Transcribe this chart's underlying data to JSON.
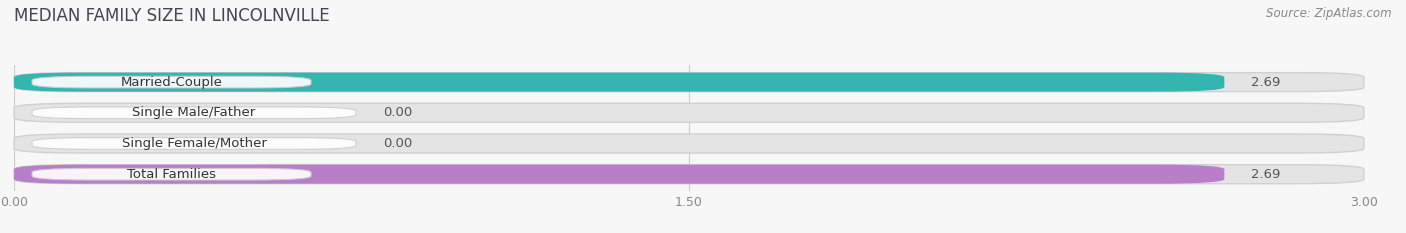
{
  "title": "MEDIAN FAMILY SIZE IN LINCOLNVILLE",
  "source": "Source: ZipAtlas.com",
  "categories": [
    "Married-Couple",
    "Single Male/Father",
    "Single Female/Mother",
    "Total Families"
  ],
  "values": [
    2.69,
    0.0,
    0.0,
    2.69
  ],
  "bar_colors": [
    "#35b5b0",
    "#a0b4e8",
    "#f4a0b5",
    "#b87ec8"
  ],
  "bar_track_color": "#e4e4e4",
  "bar_height": 0.62,
  "xlim": [
    0,
    3.0
  ],
  "xticks": [
    0.0,
    1.5,
    3.0
  ],
  "xtick_labels": [
    "0.00",
    "1.50",
    "3.00"
  ],
  "bg_color": "#f7f7f7",
  "label_fontsize": 9.5,
  "value_fontsize": 9.5,
  "title_fontsize": 12,
  "title_color": "#444455",
  "source_fontsize": 8.5
}
